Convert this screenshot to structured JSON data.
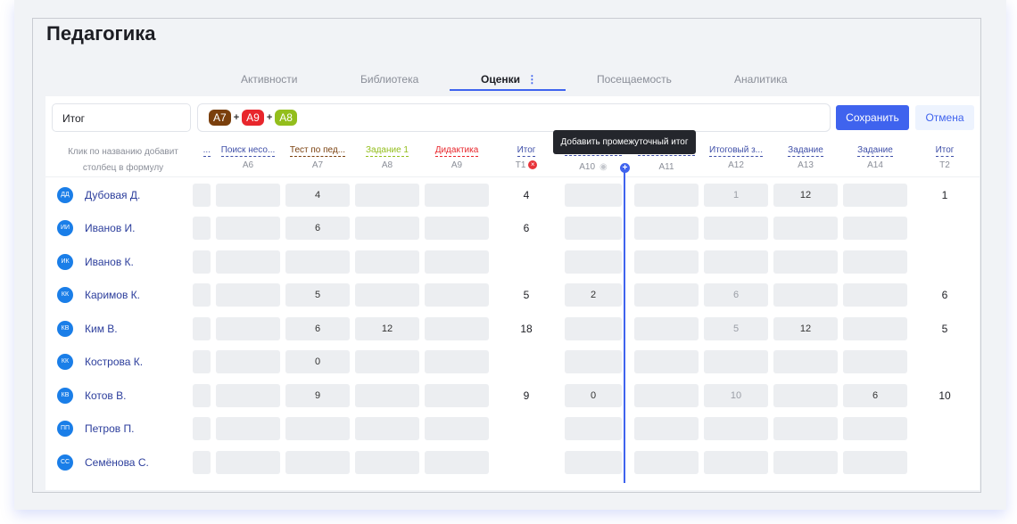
{
  "title": "Педагогика",
  "tabs": [
    "Активности",
    "Библиотека",
    "Оценки",
    "Посещаемость",
    "Аналитика"
  ],
  "tab_menu_icon": "⋮",
  "formula": {
    "name": "Итог",
    "chips": [
      {
        "label": "A7",
        "color": "#7a3f0c"
      },
      {
        "label": "A9",
        "color": "#e8262c"
      },
      {
        "label": "A8",
        "color": "#93be1c"
      }
    ],
    "op": "+"
  },
  "buttons": {
    "save": "Сохранить",
    "cancel": "Отмена"
  },
  "hint": "Клик по названию добавит столбец в формулу",
  "tooltip": "Добавить промежуточный итог",
  "columns": [
    {
      "name": "...",
      "code": "",
      "color": "#3f4fa8"
    },
    {
      "name": "Поиск несо...",
      "code": "A6",
      "color": "#3f4fa8"
    },
    {
      "name": "Тест по пед...",
      "code": "A7",
      "color": "#7a3f0c"
    },
    {
      "name": "Задание 1",
      "code": "A8",
      "color": "#93be1c"
    },
    {
      "name": "Дидактика",
      "code": "A9",
      "color": "#e8262c"
    },
    {
      "name": "Итог",
      "code": "T1",
      "color": "#3f4fa8"
    },
    {
      "name": "",
      "code": "A10",
      "color": "#3f4fa8"
    },
    {
      "name": "",
      "code": "A11",
      "color": "#3f4fa8"
    },
    {
      "name": "Итоговый з...",
      "code": "A12",
      "color": "#3f4fa8"
    },
    {
      "name": "Задание",
      "code": "A13",
      "color": "#3f4fa8"
    },
    {
      "name": "Задание",
      "code": "A14",
      "color": "#3f4fa8"
    },
    {
      "name": "Итог",
      "code": "T2",
      "color": "#3f4fa8"
    }
  ],
  "students": [
    {
      "initials": "ДД",
      "name": "Дубовая Д.",
      "values": [
        "",
        "",
        "4",
        "",
        "",
        "4",
        "",
        "",
        "1",
        "12",
        "",
        "1"
      ]
    },
    {
      "initials": "ИИ",
      "name": "Иванов И.",
      "values": [
        "",
        "",
        "6",
        "",
        "",
        "6",
        "",
        "",
        "",
        "",
        "",
        ""
      ]
    },
    {
      "initials": "ИК",
      "name": "Иванов К.",
      "values": [
        "",
        "",
        "",
        "",
        "",
        "",
        "",
        "",
        "",
        "",
        "",
        ""
      ]
    },
    {
      "initials": "КК",
      "name": "Каримов К.",
      "values": [
        "",
        "",
        "5",
        "",
        "",
        "5",
        "2",
        "",
        "6",
        "",
        "",
        "6"
      ]
    },
    {
      "initials": "КВ",
      "name": "Ким В.",
      "values": [
        "",
        "",
        "6",
        "12",
        "",
        "18",
        "",
        "",
        "5",
        "12",
        "",
        "5"
      ]
    },
    {
      "initials": "КК",
      "name": "Кострова К.",
      "values": [
        "",
        "",
        "0",
        "",
        "",
        "",
        "",
        "",
        "",
        "",
        "",
        ""
      ]
    },
    {
      "initials": "КВ",
      "name": "Котов В.",
      "values": [
        "",
        "",
        "9",
        "",
        "",
        "9",
        "0",
        "",
        "10",
        "",
        "6",
        "10"
      ]
    },
    {
      "initials": "ПП",
      "name": "Петров П.",
      "values": [
        "",
        "",
        "",
        "",
        "",
        "",
        "",
        "",
        "",
        "",
        "",
        ""
      ]
    },
    {
      "initials": "СС",
      "name": "Семёнова С.",
      "values": [
        "",
        "",
        "",
        "",
        "",
        "",
        "",
        "",
        "",
        "",
        "",
        ""
      ]
    }
  ]
}
